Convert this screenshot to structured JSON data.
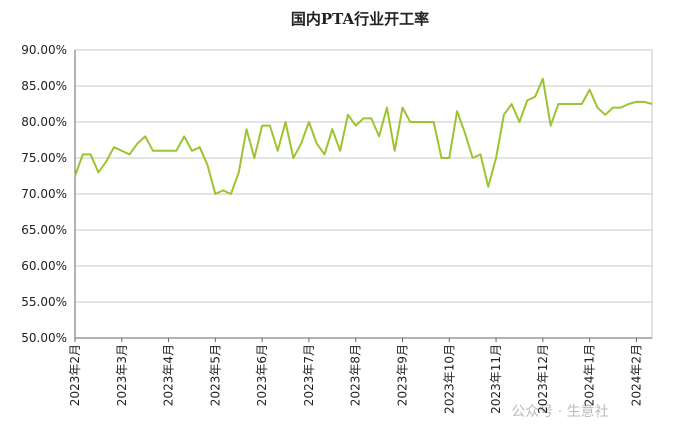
{
  "chart_data": {
    "type": "line",
    "title": "国内PTA行业开工率",
    "annotation": "公众号 · 生意社",
    "categories": [
      "2023年2月",
      null,
      null,
      null,
      null,
      null,
      "2023年3月",
      null,
      null,
      null,
      null,
      null,
      "2023年4月",
      null,
      null,
      null,
      null,
      null,
      "2023年5月",
      null,
      null,
      null,
      null,
      null,
      "2023年6月",
      null,
      null,
      null,
      null,
      null,
      "2023年7月",
      null,
      null,
      null,
      null,
      null,
      "2023年8月",
      null,
      null,
      null,
      null,
      null,
      "2023年9月",
      null,
      null,
      null,
      null,
      null,
      "2023年10月",
      null,
      null,
      null,
      null,
      null,
      "2023年11月",
      null,
      null,
      null,
      null,
      null,
      "2023年12月",
      null,
      null,
      null,
      null,
      null,
      "2024年1月",
      null,
      null,
      null,
      null,
      null,
      "2024年2月",
      null,
      null
    ],
    "series": [
      {
        "color": "#9cc431",
        "values": [
          72.5,
          75.5,
          75.5,
          73,
          74.5,
          76.5,
          76,
          75.5,
          77,
          78,
          76,
          76,
          76,
          76,
          78,
          76,
          76.5,
          74,
          70,
          70.5,
          70,
          73,
          79,
          75,
          79.5,
          79.5,
          76,
          80,
          75,
          77,
          80,
          77,
          75.5,
          79,
          76,
          81,
          79.5,
          80.5,
          80.5,
          78,
          82,
          76,
          82,
          80,
          80,
          80,
          80,
          75,
          75,
          81.5,
          78.5,
          75,
          75.5,
          71,
          75,
          81,
          82.5,
          80,
          83,
          83.5,
          86,
          79.5,
          82.5,
          82.5,
          82.5,
          82.5,
          84.5,
          82,
          81,
          82,
          82,
          82.5,
          82.8,
          82.8,
          82.5
        ]
      }
    ],
    "ylim": [
      50,
      90
    ],
    "yticks": [
      {
        "value": 50,
        "label": "50.00%"
      },
      {
        "value": 55,
        "label": "55.00%"
      },
      {
        "value": 60,
        "label": "60.00%"
      },
      {
        "value": 65,
        "label": "65.00%"
      },
      {
        "value": 70,
        "label": "70.00%"
      },
      {
        "value": 75,
        "label": "75.00%"
      },
      {
        "value": 80,
        "label": "80.00%"
      },
      {
        "value": 85,
        "label": "85.00%"
      },
      {
        "value": 90,
        "label": "90.00%"
      }
    ],
    "grid": true
  }
}
